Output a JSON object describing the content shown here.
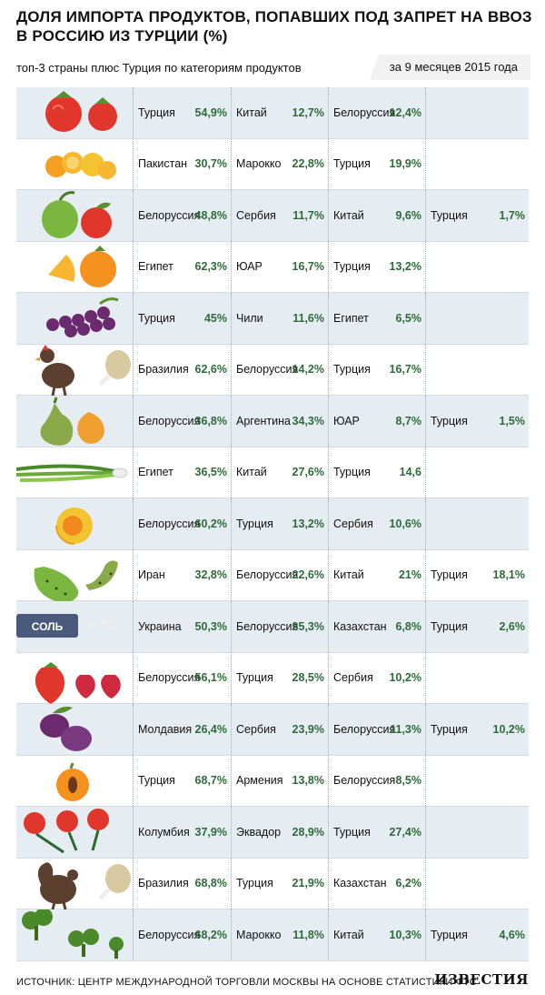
{
  "chart_data": {
    "type": "table",
    "title": "ДОЛЯ ИМПОРТА ПРОДУКТОВ, ПОПАВШИХ ПОД ЗАПРЕТ НА ВВОЗ В РОССИЮ ИЗ ТУРЦИИ (%)",
    "subtitle": "топ-3 страны плюс Турция по категориям продуктов",
    "period": "за 9 месяцев 2015 года",
    "rows": [
      {
        "icon": "tomato-icon",
        "entries": [
          {
            "country": "Турция",
            "share": "54,9%"
          },
          {
            "country": "Китай",
            "share": "12,7%"
          },
          {
            "country": "Белоруссия",
            "share": "12,4%"
          }
        ]
      },
      {
        "icon": "tangerine-icon",
        "entries": [
          {
            "country": "Пакистан",
            "share": "30,7%"
          },
          {
            "country": "Марокко",
            "share": "22,8%"
          },
          {
            "country": "Турция",
            "share": "19,9%"
          }
        ]
      },
      {
        "icon": "apple-icon",
        "entries": [
          {
            "country": "Белоруссия",
            "share": "48,8%"
          },
          {
            "country": "Сербия",
            "share": "11,7%"
          },
          {
            "country": "Китай",
            "share": "9,6%"
          },
          {
            "country": "Турция",
            "share": "1,7%"
          }
        ]
      },
      {
        "icon": "orange-icon",
        "entries": [
          {
            "country": "Египет",
            "share": "62,3%"
          },
          {
            "country": "ЮАР",
            "share": "16,7%"
          },
          {
            "country": "Турция",
            "share": "13,2%"
          }
        ]
      },
      {
        "icon": "grapes-icon",
        "entries": [
          {
            "country": "Турция",
            "share": "45%"
          },
          {
            "country": "Чили",
            "share": "11,6%"
          },
          {
            "country": "Египет",
            "share": "6,5%"
          }
        ]
      },
      {
        "icon": "chicken-icon",
        "entries": [
          {
            "country": "Бразилия",
            "share": "62,6%"
          },
          {
            "country": "Белоруссия",
            "share": "14,2%"
          },
          {
            "country": "Турция",
            "share": "16,7%"
          }
        ]
      },
      {
        "icon": "pear-icon",
        "entries": [
          {
            "country": "Белоруссия",
            "share": "36,8%"
          },
          {
            "country": "Аргентина",
            "share": "34,3%"
          },
          {
            "country": "ЮАР",
            "share": "8,7%"
          },
          {
            "country": "Турция",
            "share": "1,5%"
          }
        ]
      },
      {
        "icon": "green-onion-icon",
        "entries": [
          {
            "country": "Египет",
            "share": "36,5%"
          },
          {
            "country": "Китай",
            "share": "27,6%"
          },
          {
            "country": "Турция",
            "share": "14,6"
          }
        ]
      },
      {
        "icon": "apricot-icon",
        "entries": [
          {
            "country": "Белоруссия",
            "share": "60,2%"
          },
          {
            "country": "Турция",
            "share": "13,2%"
          },
          {
            "country": "Сербия",
            "share": "10,6%"
          }
        ]
      },
      {
        "icon": "cucumber-icon",
        "entries": [
          {
            "country": "Иран",
            "share": "32,8%"
          },
          {
            "country": "Белоруссия",
            "share": "22,6%"
          },
          {
            "country": "Китай",
            "share": "21%"
          },
          {
            "country": "Турция",
            "share": "18,1%"
          }
        ]
      },
      {
        "icon": "salt-icon",
        "label": "СОЛЬ",
        "entries": [
          {
            "country": "Украина",
            "share": "50,3%"
          },
          {
            "country": "Белоруссия",
            "share": "35,3%"
          },
          {
            "country": "Казахстан",
            "share": "6,8%"
          },
          {
            "country": "Турция",
            "share": "2,6%"
          }
        ]
      },
      {
        "icon": "strawberry-icon",
        "entries": [
          {
            "country": "Белоруссия",
            "share": "56,1%"
          },
          {
            "country": "Турция",
            "share": "28,5%"
          },
          {
            "country": "Сербия",
            "share": "10,2%"
          }
        ]
      },
      {
        "icon": "plum-icon",
        "entries": [
          {
            "country": "Молдавия",
            "share": "26,4%"
          },
          {
            "country": "Сербия",
            "share": "23,9%"
          },
          {
            "country": "Белоруссия",
            "share": "11,3%"
          },
          {
            "country": "Турция",
            "share": "10,2%"
          }
        ]
      },
      {
        "icon": "peach-icon",
        "entries": [
          {
            "country": "Турция",
            "share": "68,7%"
          },
          {
            "country": "Армения",
            "share": "13,8%"
          },
          {
            "country": "Белоруссия",
            "share": "8,5%"
          }
        ]
      },
      {
        "icon": "carnation-icon",
        "entries": [
          {
            "country": "Колумбия",
            "share": "37,9%"
          },
          {
            "country": "Эквадор",
            "share": "28,9%"
          },
          {
            "country": "Турция",
            "share": "27,4%"
          }
        ]
      },
      {
        "icon": "turkey-icon",
        "entries": [
          {
            "country": "Бразилия",
            "share": "68,8%"
          },
          {
            "country": "Турция",
            "share": "21,9%"
          },
          {
            "country": "Казахстан",
            "share": "6,2%"
          }
        ]
      },
      {
        "icon": "broccoli-icon",
        "entries": [
          {
            "country": "Белоруссия",
            "share": "68,2%"
          },
          {
            "country": "Марокко",
            "share": "11,8%"
          },
          {
            "country": "Китай",
            "share": "10,3%"
          },
          {
            "country": "Турция",
            "share": "4,6%"
          }
        ]
      }
    ],
    "source": "ИСТОЧНИК: ЦЕНТР МЕЖДУНАРОДНОЙ ТОРГОВЛИ МОСКВЫ НА ОСНОВЕ СТАТИСТИКИ ФТС",
    "brand": "ИЗВЕСТИЯ"
  },
  "colors": {
    "shade": "#e6edf2",
    "percent": "#2e6b3a",
    "red": "#e0362c",
    "green": "#6a9e3a"
  }
}
